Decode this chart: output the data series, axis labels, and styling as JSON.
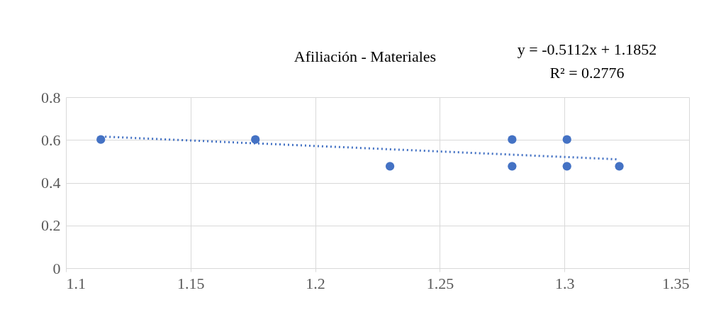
{
  "chart_data": {
    "type": "scatter",
    "title": "Afiliación - Materiales",
    "annotations": [
      "y = -0.5112x + 1.1852",
      "R² = 0.2776"
    ],
    "series": [
      {
        "color": "#4472c4",
        "marker": "circle",
        "x": [
          1.114,
          1.176,
          1.23,
          1.279,
          1.279,
          1.301,
          1.301,
          1.322
        ],
        "values": [
          0.602,
          0.602,
          0.477,
          0.602,
          0.477,
          0.602,
          0.477,
          0.477
        ]
      },
      {
        "type": "line",
        "color": "#4472c4",
        "line_style": "dotted",
        "x": [
          1.114,
          1.322
        ],
        "values": [
          0.616,
          0.509
        ]
      }
    ],
    "xlim": [
      1.1,
      1.35
    ],
    "xticks": [
      1.1,
      1.15,
      1.2,
      1.25,
      1.3,
      1.35
    ],
    "ylim": [
      0,
      0.8
    ],
    "yticks": [
      0,
      0.2,
      0.4,
      0.6,
      0.8
    ],
    "grid": true
  }
}
